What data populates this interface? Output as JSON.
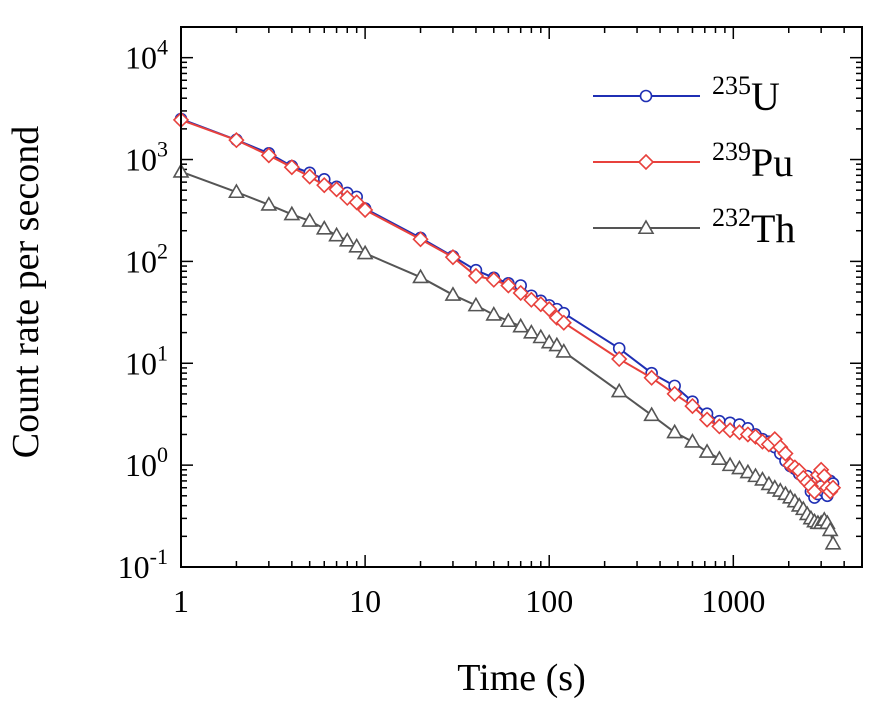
{
  "chart_data": {
    "type": "line",
    "title": "",
    "xlabel": "Time (s)",
    "ylabel": "Count rate per second",
    "x_scale": "log",
    "y_scale": "log",
    "xlim": [
      1,
      5000
    ],
    "ylim": [
      0.1,
      20000
    ],
    "x_ticks": [
      {
        "value": 1,
        "label": "1"
      },
      {
        "value": 10,
        "label": "10"
      },
      {
        "value": 100,
        "label": "100"
      },
      {
        "value": 1000,
        "label": "1000"
      }
    ],
    "y_ticks": [
      {
        "value": 0.1,
        "base": "10",
        "exp": "-1"
      },
      {
        "value": 1,
        "base": "10",
        "exp": "0"
      },
      {
        "value": 10,
        "base": "10",
        "exp": "1"
      },
      {
        "value": 100,
        "base": "10",
        "exp": "2"
      },
      {
        "value": 1000,
        "base": "10",
        "exp": "3"
      },
      {
        "value": 10000,
        "base": "10",
        "exp": "4"
      }
    ],
    "grid": false,
    "legend_position": "top-right",
    "series": [
      {
        "name": "235U",
        "legend_sup": "235",
        "legend_main": "U",
        "color": "#1f2fb4",
        "marker": "circle",
        "x": [
          1,
          2,
          3,
          4,
          5,
          6,
          7,
          8,
          9,
          10,
          20,
          30,
          40,
          50,
          60,
          70,
          80,
          90,
          100,
          110,
          120,
          240,
          360,
          480,
          600,
          720,
          840,
          960,
          1080,
          1200,
          1320,
          1440,
          1560,
          1680,
          1800,
          1920,
          2040,
          2160,
          2280,
          2400,
          2520,
          2640,
          2760,
          2880,
          3000,
          3120,
          3240,
          3360,
          3480
        ],
        "y": [
          2500,
          1560,
          1150,
          860,
          740,
          640,
          540,
          470,
          430,
          330,
          170,
          112,
          82,
          69,
          61,
          58,
          46,
          41,
          37,
          34,
          31,
          14,
          8.0,
          6.0,
          4.2,
          3.2,
          2.7,
          2.6,
          2.5,
          2.3,
          2.0,
          1.8,
          1.7,
          1.5,
          1.3,
          1.1,
          0.98,
          0.92,
          0.82,
          0.76,
          0.78,
          0.55,
          0.48,
          0.52,
          0.62,
          0.55,
          0.5,
          0.7,
          0.66
        ]
      },
      {
        "name": "239Pu",
        "legend_sup": "239",
        "legend_main": "Pu",
        "color": "#e8413c",
        "marker": "diamond",
        "x": [
          1,
          2,
          3,
          4,
          5,
          6,
          7,
          8,
          9,
          10,
          20,
          30,
          40,
          50,
          60,
          70,
          80,
          90,
          100,
          110,
          120,
          240,
          360,
          480,
          600,
          720,
          840,
          960,
          1080,
          1200,
          1320,
          1440,
          1560,
          1680,
          1800,
          1920,
          2040,
          2160,
          2280,
          2400,
          2520,
          2640,
          2760,
          2880,
          3000,
          3120,
          3240,
          3360,
          3480
        ],
        "y": [
          2450,
          1550,
          1100,
          840,
          680,
          560,
          510,
          420,
          380,
          320,
          165,
          110,
          72,
          66,
          58,
          49,
          42,
          38,
          34,
          28,
          25,
          11,
          7.2,
          5.0,
          3.8,
          2.8,
          2.4,
          2.2,
          2.1,
          2.0,
          1.9,
          1.7,
          1.6,
          1.8,
          1.5,
          1.3,
          1.0,
          0.95,
          0.88,
          0.75,
          0.68,
          0.62,
          0.55,
          0.8,
          0.9,
          0.78,
          0.6,
          0.55,
          0.6
        ]
      },
      {
        "name": "232Th",
        "legend_sup": "232",
        "legend_main": "Th",
        "color": "#555555",
        "marker": "triangle",
        "x": [
          1,
          2,
          3,
          4,
          5,
          6,
          7,
          8,
          9,
          10,
          20,
          30,
          40,
          50,
          60,
          70,
          80,
          90,
          100,
          110,
          120,
          240,
          360,
          480,
          600,
          720,
          840,
          960,
          1080,
          1200,
          1320,
          1440,
          1560,
          1680,
          1800,
          1920,
          2040,
          2160,
          2280,
          2400,
          2520,
          2640,
          2760,
          2880,
          3000,
          3120,
          3240,
          3360,
          3480
        ],
        "y": [
          760,
          480,
          360,
          290,
          250,
          210,
          180,
          160,
          140,
          120,
          70,
          47,
          37,
          30,
          26,
          23,
          20,
          18,
          16,
          15,
          13,
          5.3,
          3.1,
          2.1,
          1.7,
          1.35,
          1.15,
          1.0,
          0.93,
          0.85,
          0.78,
          0.72,
          0.65,
          0.6,
          0.56,
          0.52,
          0.48,
          0.44,
          0.4,
          0.37,
          0.33,
          0.3,
          0.28,
          0.27,
          0.27,
          0.29,
          0.27,
          0.23,
          0.17
        ]
      }
    ]
  }
}
